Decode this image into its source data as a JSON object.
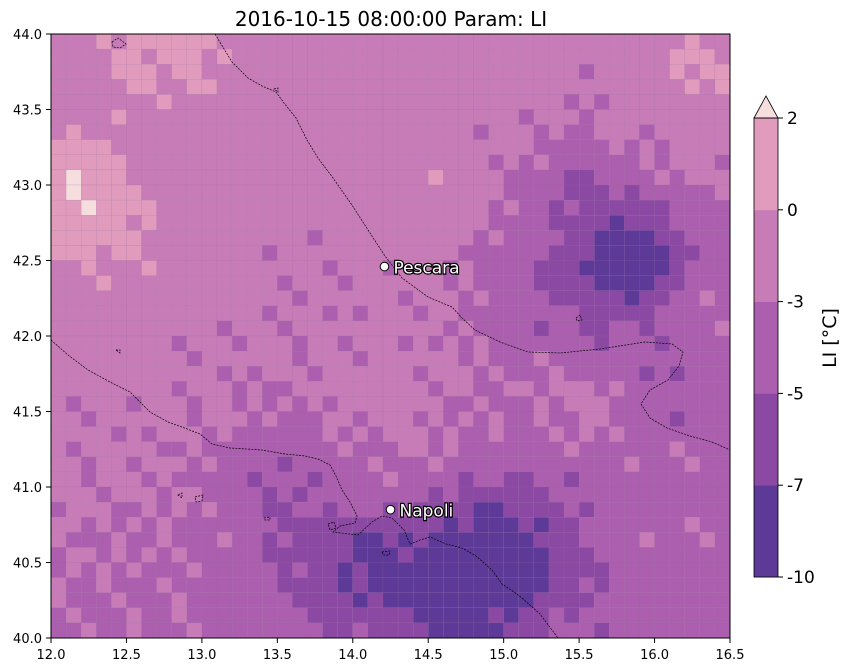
{
  "title": "2016-10-15 08:00:00 Param: LI",
  "map": {
    "lon_range": [
      12.0,
      16.5
    ],
    "lat_range": [
      40.0,
      44.0
    ],
    "grid_step_deg": 0.1,
    "x_ticks": [
      "12.0",
      "12.5",
      "13.0",
      "13.5",
      "14.0",
      "14.5",
      "15.0",
      "15.5",
      "16.0",
      "16.5"
    ],
    "y_ticks": [
      "40.0",
      "40.5",
      "41.0",
      "41.5",
      "42.0",
      "42.5",
      "43.0",
      "43.5",
      "44.0"
    ],
    "cities": [
      {
        "name": "Pescara",
        "lon": 14.21,
        "lat": 42.46
      },
      {
        "name": "Napoli",
        "lon": 14.25,
        "lat": 40.85
      }
    ]
  },
  "colorbar": {
    "label": "LI  [°C]",
    "tick_labels": [
      "2",
      "0",
      "-3",
      "-5",
      "-7",
      "-10"
    ],
    "levels": [
      -10,
      -7,
      -5,
      -3,
      0,
      2
    ],
    "colors": [
      "#5e3a98",
      "#8b49a3",
      "#ab5fae",
      "#c87cb7",
      "#e09bbd"
    ],
    "extend_max_color": "#f6dede"
  }
}
